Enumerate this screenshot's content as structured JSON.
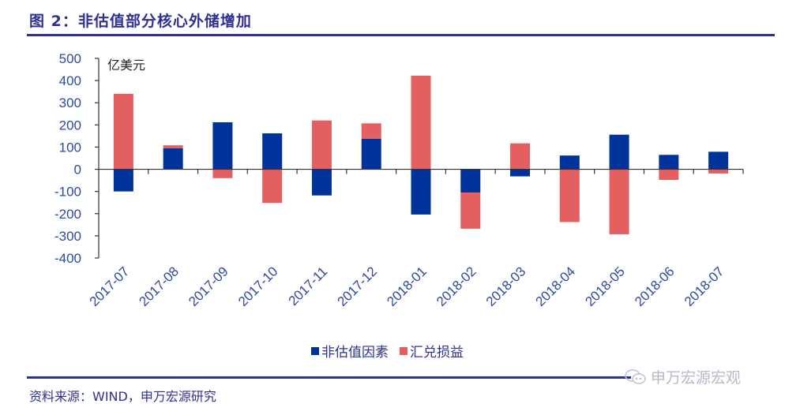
{
  "figure": {
    "title": "图 2：非估值部分核心外储增加",
    "source": "资料来源：WIND，申万宏源研究",
    "watermark": "申万宏源宏观",
    "watermark_icon": "wechat-icon"
  },
  "colors": {
    "title": "#2e3192",
    "series_blue": "#003399",
    "series_red": "#e46060",
    "tick_text": "#2e4a9e",
    "axis": "#333333"
  },
  "chart_data": {
    "type": "bar",
    "stacked": true,
    "title": "非估值部分核心外储增加",
    "unit_label": "亿美元",
    "xlabel": "",
    "ylabel": "亿美元",
    "ylim": [
      -400,
      500
    ],
    "yticks": [
      500,
      400,
      300,
      200,
      100,
      0,
      -100,
      -200,
      -300,
      -400
    ],
    "ytick_labels": [
      "500",
      "400",
      "300",
      "200",
      "100",
      "0",
      "-100",
      "-200",
      "-300",
      "-400"
    ],
    "grid": false,
    "legend_position": "bottom",
    "categories": [
      "2017-07",
      "2017-08",
      "2017-09",
      "2017-10",
      "2017-11",
      "2017-12",
      "2018-01",
      "2018-02",
      "2018-03",
      "2018-04",
      "2018-05",
      "2018-06",
      "2018-07"
    ],
    "series": [
      {
        "name": "非估值因素",
        "color": "#003399",
        "values": [
          -100,
          95,
          212,
          162,
          -118,
          138,
          -204,
          -105,
          -32,
          62,
          156,
          65,
          79
        ]
      },
      {
        "name": "汇兑损益",
        "color": "#e46060",
        "values": [
          340,
          13,
          -40,
          -152,
          220,
          69,
          422,
          -163,
          117,
          -238,
          -293,
          -48,
          -19
        ]
      }
    ]
  }
}
